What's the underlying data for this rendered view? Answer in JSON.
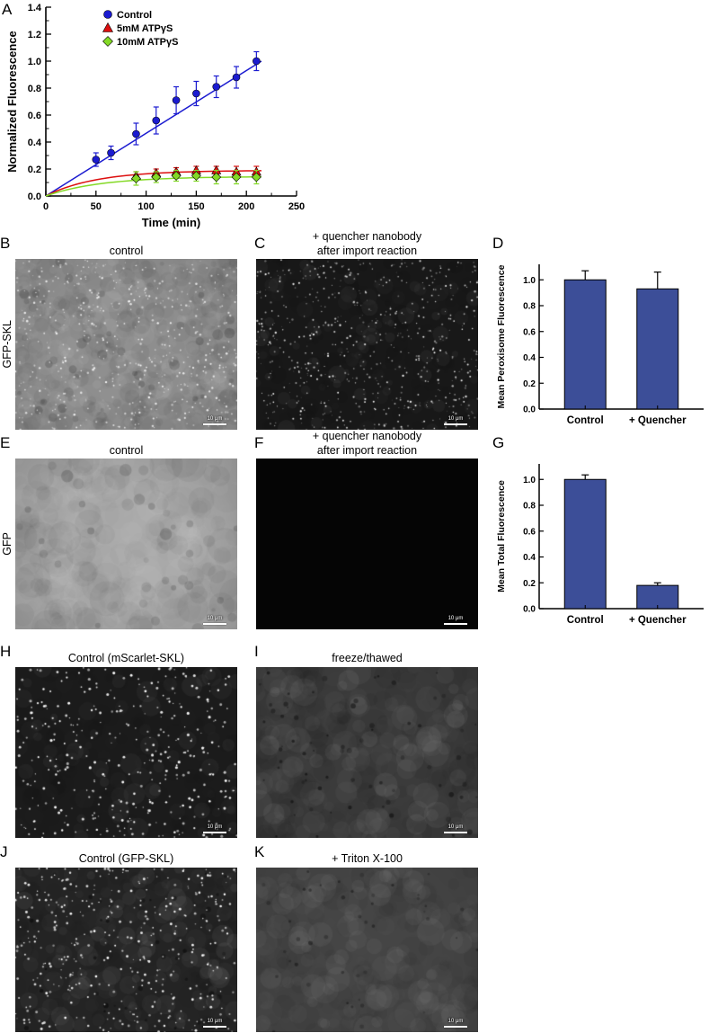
{
  "panel_a": {
    "label": "A",
    "chart_data": {
      "type": "line",
      "xlabel": "Time (min)",
      "ylabel": "Normalized Fluorescence",
      "xlim": [
        0,
        250
      ],
      "ylim": [
        0,
        1.4
      ],
      "xticks": [
        0,
        50,
        100,
        150,
        200,
        250
      ],
      "yticks": [
        "0.0",
        "0.2",
        "0.4",
        "0.6",
        "0.8",
        "1.0",
        "1.2",
        "1.4"
      ],
      "legend_position": "top-left-inside",
      "series": [
        {
          "name": "Control",
          "color": "#1b1bd0",
          "marker": "circle",
          "x": [
            50,
            65,
            90,
            110,
            130,
            150,
            170,
            190,
            210
          ],
          "y": [
            0.27,
            0.32,
            0.46,
            0.56,
            0.71,
            0.76,
            0.81,
            0.88,
            1.0
          ],
          "err": [
            0.05,
            0.05,
            0.08,
            0.1,
            0.1,
            0.09,
            0.08,
            0.08,
            0.07
          ],
          "fit": {
            "type": "linear",
            "slope": 0.00465,
            "range": [
              0,
              215
            ]
          }
        },
        {
          "name": "5mM ATPγS",
          "color": "#dd0f0f",
          "marker": "triangle",
          "x": [
            90,
            110,
            130,
            150,
            170,
            190,
            210
          ],
          "y": [
            0.15,
            0.17,
            0.18,
            0.19,
            0.19,
            0.18,
            0.18
          ],
          "err": [
            0.03,
            0.03,
            0.03,
            0.03,
            0.03,
            0.04,
            0.04
          ],
          "fit": {
            "type": "saturation",
            "amplitude": 0.19,
            "tau": 50,
            "range": [
              0,
              215
            ]
          }
        },
        {
          "name": "10mM ATPγS",
          "color": "#84d926",
          "marker": "diamond",
          "x": [
            90,
            110,
            130,
            150,
            170,
            190,
            210
          ],
          "y": [
            0.13,
            0.14,
            0.15,
            0.15,
            0.14,
            0.14,
            0.14
          ],
          "err": [
            0.05,
            0.04,
            0.04,
            0.04,
            0.05,
            0.05,
            0.05
          ],
          "fit": {
            "type": "saturation",
            "amplitude": 0.145,
            "tau": 55,
            "range": [
              0,
              215
            ]
          }
        }
      ]
    }
  },
  "panel_d": {
    "label": "D",
    "chart_data": {
      "type": "bar",
      "categories": [
        "Control",
        "+ Quencher"
      ],
      "values": [
        1.0,
        0.93
      ],
      "errors": [
        0.07,
        0.13
      ],
      "ylabel": "Mean Peroxisome Fluorescence",
      "ylim": [
        0,
        1.12
      ],
      "yticks": [
        "0.0",
        "0.2",
        "0.4",
        "0.6",
        "0.8",
        "1.0"
      ],
      "bar_color": "#3c4e98"
    }
  },
  "panel_g": {
    "label": "G",
    "chart_data": {
      "type": "bar",
      "categories": [
        "Control",
        "+ Quencher"
      ],
      "values": [
        1.0,
        0.18
      ],
      "errors": [
        0.035,
        0.02
      ],
      "ylabel": "Mean Total Fluorescence",
      "ylim": [
        0,
        1.12
      ],
      "yticks": [
        "0.0",
        "0.2",
        "0.4",
        "0.6",
        "0.8",
        "1.0"
      ],
      "bar_color": "#3c4e98"
    }
  },
  "micrograph_rows": [
    {
      "row_label": "GFP-SKL",
      "panels": [
        {
          "label": "B",
          "title_lines": [
            "control"
          ],
          "style": "light_speckled",
          "scalebar_label": "10 μm"
        },
        {
          "label": "C",
          "title_lines": [
            "+ quencher nanobody",
            "after import reaction"
          ],
          "style": "dark_speckled",
          "scalebar_label": "10 μm"
        }
      ]
    },
    {
      "row_label": "GFP",
      "panels": [
        {
          "label": "E",
          "title_lines": [
            "control"
          ],
          "style": "light_smooth",
          "scalebar_label": "10 μm"
        },
        {
          "label": "F",
          "title_lines": [
            "+ quencher nanobody",
            "after import reaction"
          ],
          "style": "black",
          "scalebar_label": "10 μm"
        }
      ]
    },
    {
      "row_label": "",
      "panels": [
        {
          "label": "H",
          "title_lines": [
            "Control (mScarlet-SKL)"
          ],
          "style": "dark_bright_dots",
          "scalebar_label": "10 μm"
        },
        {
          "label": "I",
          "title_lines": [
            "freeze/thawed"
          ],
          "style": "dark_smooth",
          "scalebar_label": "10 μm"
        }
      ]
    },
    {
      "row_label": "",
      "panels": [
        {
          "label": "J",
          "title_lines": [
            "Control (GFP-SKL)"
          ],
          "style": "dark_bright_dots2",
          "scalebar_label": "10 μm"
        },
        {
          "label": "K",
          "title_lines": [
            "+ Triton X-100"
          ],
          "style": "gray_smooth",
          "scalebar_label": "10 μm"
        }
      ]
    }
  ],
  "micro_styles": {
    "light_speckled": {
      "bg": "#8e8e8e",
      "mottle": {
        "count": 700,
        "rmin": 3,
        "rmax": 12,
        "alpha": 0.06
      },
      "blobs": {
        "count": 50,
        "rmin": 2,
        "rmax": 6,
        "alpha": 0.18
      },
      "dots": {
        "count": 550,
        "rmin": 0.5,
        "rmax": 1.3,
        "amin": 0.35,
        "amax": 0.95
      },
      "vignette": 0.12
    },
    "dark_speckled": {
      "bg": "#181818",
      "mottle": {
        "count": 250,
        "rmin": 3,
        "rmax": 10,
        "alpha": 0.05
      },
      "dots": {
        "count": 650,
        "rmin": 0.4,
        "rmax": 1.2,
        "amin": 0.3,
        "amax": 1
      }
    },
    "light_smooth": {
      "bg": "#aaaaaa",
      "mottle": {
        "count": 400,
        "rmin": 6,
        "rmax": 20,
        "alpha": 0.05
      },
      "blobs": {
        "count": 35,
        "rmin": 2,
        "rmax": 7,
        "alpha": 0.16
      },
      "vignette": 0.18
    },
    "black": {
      "bg": "#050505"
    },
    "dark_bright_dots": {
      "bg": "#1b1b1b",
      "mottle": {
        "count": 200,
        "rmin": 4,
        "rmax": 12,
        "alpha": 0.05
      },
      "dots": {
        "count": 380,
        "rmin": 0.6,
        "rmax": 1.6,
        "amin": 0.5,
        "amax": 1
      }
    },
    "dark_smooth": {
      "bg": "#3b3b3b",
      "mottle": {
        "count": 350,
        "rmin": 5,
        "rmax": 16,
        "alpha": 0.06
      },
      "blobs": {
        "count": 70,
        "rmin": 1,
        "rmax": 3,
        "alpha": 0.5
      },
      "vignette": 0.15
    },
    "dark_bright_dots2": {
      "bg": "#242424",
      "mottle": {
        "count": 300,
        "rmin": 4,
        "rmax": 12,
        "alpha": 0.06
      },
      "dots": {
        "count": 420,
        "rmin": 0.6,
        "rmax": 1.5,
        "amin": 0.45,
        "amax": 1
      },
      "blobs": {
        "count": 40,
        "rmin": 1,
        "rmax": 3,
        "alpha": 0.5
      }
    },
    "gray_smooth": {
      "bg": "#454545",
      "mottle": {
        "count": 300,
        "rmin": 5,
        "rmax": 16,
        "alpha": 0.05
      },
      "blobs": {
        "count": 45,
        "rmin": 1,
        "rmax": 2.5,
        "alpha": 0.4
      },
      "vignette": 0.12
    }
  }
}
